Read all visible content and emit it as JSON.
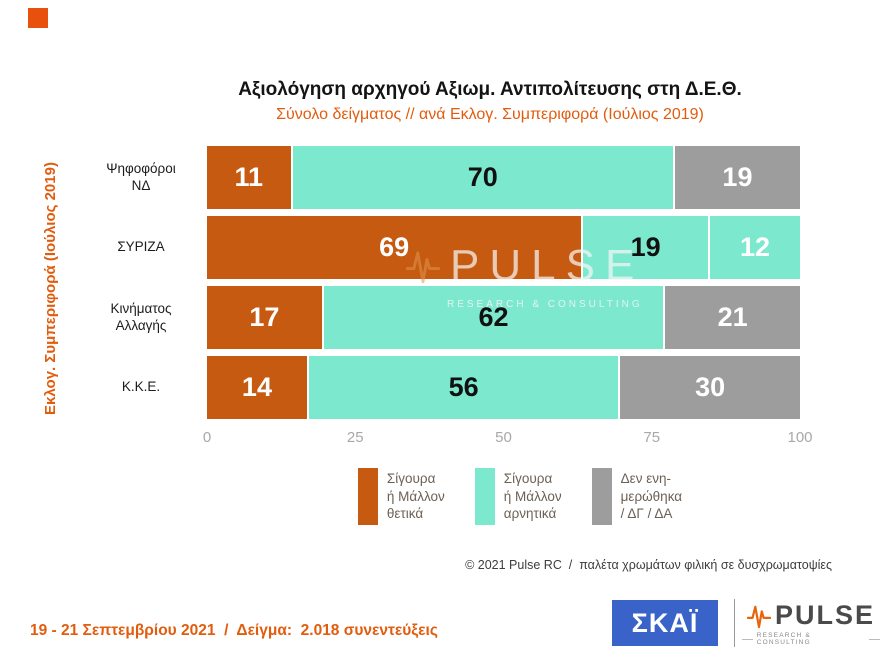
{
  "header": {
    "title": "Αξιολόγηση αρχηγού Αξιωμ. Αντιπολίτευσης στη Δ.Ε.Θ.",
    "subtitle": "Σύνολο δείγματος // ανά Εκλογ. Συμπεριφορά (Ιούλιος 2019)"
  },
  "palette": {
    "orange": "#c65a11",
    "mint": "#7ce9cf",
    "gray": "#9d9d9d",
    "accent_orange_text": "#e25c0e",
    "skai_blue": "#3a63c9"
  },
  "chart_data": {
    "type": "bar",
    "orientation": "horizontal",
    "stacked": true,
    "title": "Αξιολόγηση αρχηγού Αξιωμ. Αντιπολίτευσης στη Δ.Ε.Θ.",
    "subtitle": "Σύνολο δείγματος // ανά Εκλογ. Συμπεριφορά (Ιούλιος 2019)",
    "y_axis_title": "Εκλογ. Συμπεριφορά (Ιούλιος 2019)",
    "categories": [
      "Ψηφοφόροι ΝΔ",
      "ΣΥΡΙΖΑ",
      "Κινήματος Αλλαγής",
      "Κ.Κ.Ε."
    ],
    "category_lines": [
      [
        "Ψηφοφόροι",
        "ΝΔ"
      ],
      [
        "ΣΥΡΙΖΑ"
      ],
      [
        "Κινήματος",
        "Αλλαγής"
      ],
      [
        "Κ.Κ.Ε."
      ]
    ],
    "series": [
      {
        "name": "Σίγουρα ή Μάλλον θετικά",
        "color": "#c65a11",
        "values": [
          11,
          69,
          17,
          14
        ]
      },
      {
        "name": "Σίγουρα ή Μάλλον αρνητικά",
        "color": "#7ce9cf",
        "values": [
          70,
          19,
          62,
          56
        ]
      },
      {
        "name": "Δεν ενημερώθηκα / ΔΓ / ΔΑ",
        "color": "#9d9d9d",
        "values": [
          19,
          12,
          21,
          30
        ]
      }
    ],
    "segment_colors": [
      [
        "orange",
        "mint",
        "gray"
      ],
      [
        "orange",
        "mint",
        "mint"
      ],
      [
        "orange",
        "mint",
        "gray"
      ],
      [
        "orange",
        "mint",
        "gray"
      ]
    ],
    "segment_text_colors": [
      [
        "#ffffff",
        "#111111",
        "#ffffff"
      ],
      [
        "#ffffff",
        "#111111",
        "#ffffff"
      ],
      [
        "#ffffff",
        "#111111",
        "#ffffff"
      ],
      [
        "#ffffff",
        "#111111",
        "#ffffff"
      ]
    ],
    "x_ticks": [
      0,
      25,
      50,
      75,
      100
    ],
    "xlim": [
      0,
      100
    ],
    "grid": false,
    "legend_position": "bottom"
  },
  "legend": {
    "items": [
      {
        "lines": [
          "Σίγουρα",
          "ή Μάλλον",
          "θετικά"
        ],
        "color": "orange"
      },
      {
        "lines": [
          "Σίγουρα",
          "ή Μάλλον",
          "αρνητικά"
        ],
        "color": "mint"
      },
      {
        "lines": [
          "Δεν ενη-",
          "μερώθηκα",
          "/ ΔΓ / ΔΑ"
        ],
        "color": "gray"
      }
    ]
  },
  "watermark": {
    "word": "PULSE",
    "tagline": "RESEARCH  &  CONSULTING"
  },
  "footer": {
    "copyright": "© 2021 Pulse RC  /  παλέτα χρωμάτων φιλική σε δυσχρωματοψίες",
    "fieldwork": "19 - 21 Σεπτεμβρίου 2021  /  Δείγμα:  2.018 συνεντεύξεις",
    "skai_label": "ΣΚΑΪ",
    "pulse_label": "PULSE",
    "pulse_tagline": "RESEARCH & CONSULTING"
  }
}
